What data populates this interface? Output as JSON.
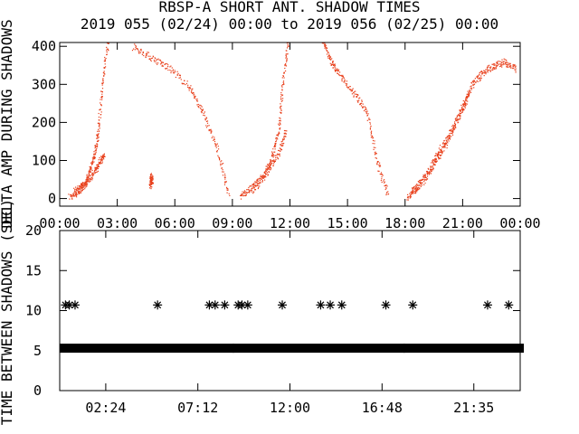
{
  "title": {
    "line1": "RBSP-A SHORT ANT. SHADOW TIMES",
    "line2": "2019 055 (02/24) 00:00 to 2019 056 (02/25) 00:00"
  },
  "colors": {
    "scatter": "#e8401c",
    "ink": "#000000",
    "background": "#ffffff"
  },
  "chart_data": [
    {
      "type": "scatter",
      "ylabel": "DELTA AMP DURING SHADOWS",
      "xlim": [
        "00:00",
        "24:00"
      ],
      "ylim": [
        -20,
        410
      ],
      "x_tick_labels": [
        "00:00",
        "03:00",
        "06:00",
        "09:00",
        "12:00",
        "15:00",
        "18:00",
        "21:00",
        "00:00"
      ],
      "y_tick_labels": [
        "0",
        "100",
        "200",
        "300",
        "400"
      ],
      "marker": "dot",
      "color": "#e8401c",
      "segments": [
        {
          "x_hours": [
            0.5,
            1.0,
            1.3,
            1.6,
            1.8,
            2.0,
            2.2,
            2.5
          ],
          "y": [
            5,
            20,
            40,
            80,
            120,
            180,
            300,
            420
          ]
        },
        {
          "x_hours": [
            0.7,
            1.3,
            1.8,
            2.1,
            2.3
          ],
          "y": [
            20,
            40,
            70,
            100,
            115
          ]
        },
        {
          "x_hours": [
            3.8,
            4.8,
            5.8,
            6.8,
            7.5,
            8.2,
            8.8
          ],
          "y": [
            400,
            370,
            340,
            290,
            220,
            130,
            10
          ]
        },
        {
          "x_hours": [
            4.7,
            4.75,
            4.8
          ],
          "y": [
            30,
            60,
            40
          ]
        },
        {
          "x_hours": [
            9.4,
            10.0,
            10.6,
            11.0,
            11.4,
            11.6,
            11.9
          ],
          "y": [
            5,
            30,
            60,
            100,
            180,
            300,
            420
          ]
        },
        {
          "x_hours": [
            10.0,
            10.8,
            11.4,
            11.8
          ],
          "y": [
            20,
            70,
            120,
            180
          ]
        },
        {
          "x_hours": [
            13.7,
            14.1,
            14.5,
            15.3,
            16.0,
            16.5,
            17.1
          ],
          "y": [
            420,
            360,
            330,
            280,
            230,
            100,
            10
          ]
        },
        {
          "x_hours": [
            18.1,
            18.6,
            19.3,
            19.8,
            20.4,
            21.0,
            21.5
          ],
          "y": [
            5,
            30,
            80,
            130,
            180,
            240,
            300
          ]
        },
        {
          "x_hours": [
            18.3,
            19.0,
            19.6,
            20.2,
            20.8,
            21.3
          ],
          "y": [
            20,
            50,
            100,
            150,
            220,
            280
          ]
        },
        {
          "x_hours": [
            21.5,
            22.0,
            22.6,
            23.2,
            23.8
          ],
          "y": [
            300,
            330,
            350,
            360,
            340
          ]
        }
      ]
    },
    {
      "type": "scatter",
      "ylabel": "TIME BETWEEN SHADOWS (SEC)",
      "xlim": [
        0,
        24
      ],
      "ylim": [
        0,
        20
      ],
      "x_tick_labels": [
        "02:24",
        "07:12",
        "12:00",
        "16:48",
        "21:35"
      ],
      "y_tick_labels": [
        "0",
        "5",
        "10",
        "15",
        "20"
      ],
      "marker": "asterisk",
      "color": "#000000",
      "band": {
        "y": 5.3,
        "x_ranges_hours": [
          [
            0.2,
            8.9
          ],
          [
            9.2,
            17.8
          ],
          [
            18.1,
            24.0
          ]
        ]
      },
      "points": [
        {
          "x_hours": 0.3,
          "y": 10.7
        },
        {
          "x_hours": 0.5,
          "y": 10.7
        },
        {
          "x_hours": 0.8,
          "y": 10.7
        },
        {
          "x_hours": 5.1,
          "y": 10.7
        },
        {
          "x_hours": 7.8,
          "y": 10.7
        },
        {
          "x_hours": 8.1,
          "y": 10.7
        },
        {
          "x_hours": 8.6,
          "y": 10.7
        },
        {
          "x_hours": 9.3,
          "y": 10.7
        },
        {
          "x_hours": 9.5,
          "y": 10.7
        },
        {
          "x_hours": 9.8,
          "y": 10.7
        },
        {
          "x_hours": 11.6,
          "y": 10.7
        },
        {
          "x_hours": 13.6,
          "y": 10.7
        },
        {
          "x_hours": 14.1,
          "y": 10.7
        },
        {
          "x_hours": 14.7,
          "y": 10.7
        },
        {
          "x_hours": 17.0,
          "y": 10.7
        },
        {
          "x_hours": 18.4,
          "y": 10.7
        },
        {
          "x_hours": 22.3,
          "y": 10.7
        },
        {
          "x_hours": 23.4,
          "y": 10.7
        }
      ]
    }
  ]
}
